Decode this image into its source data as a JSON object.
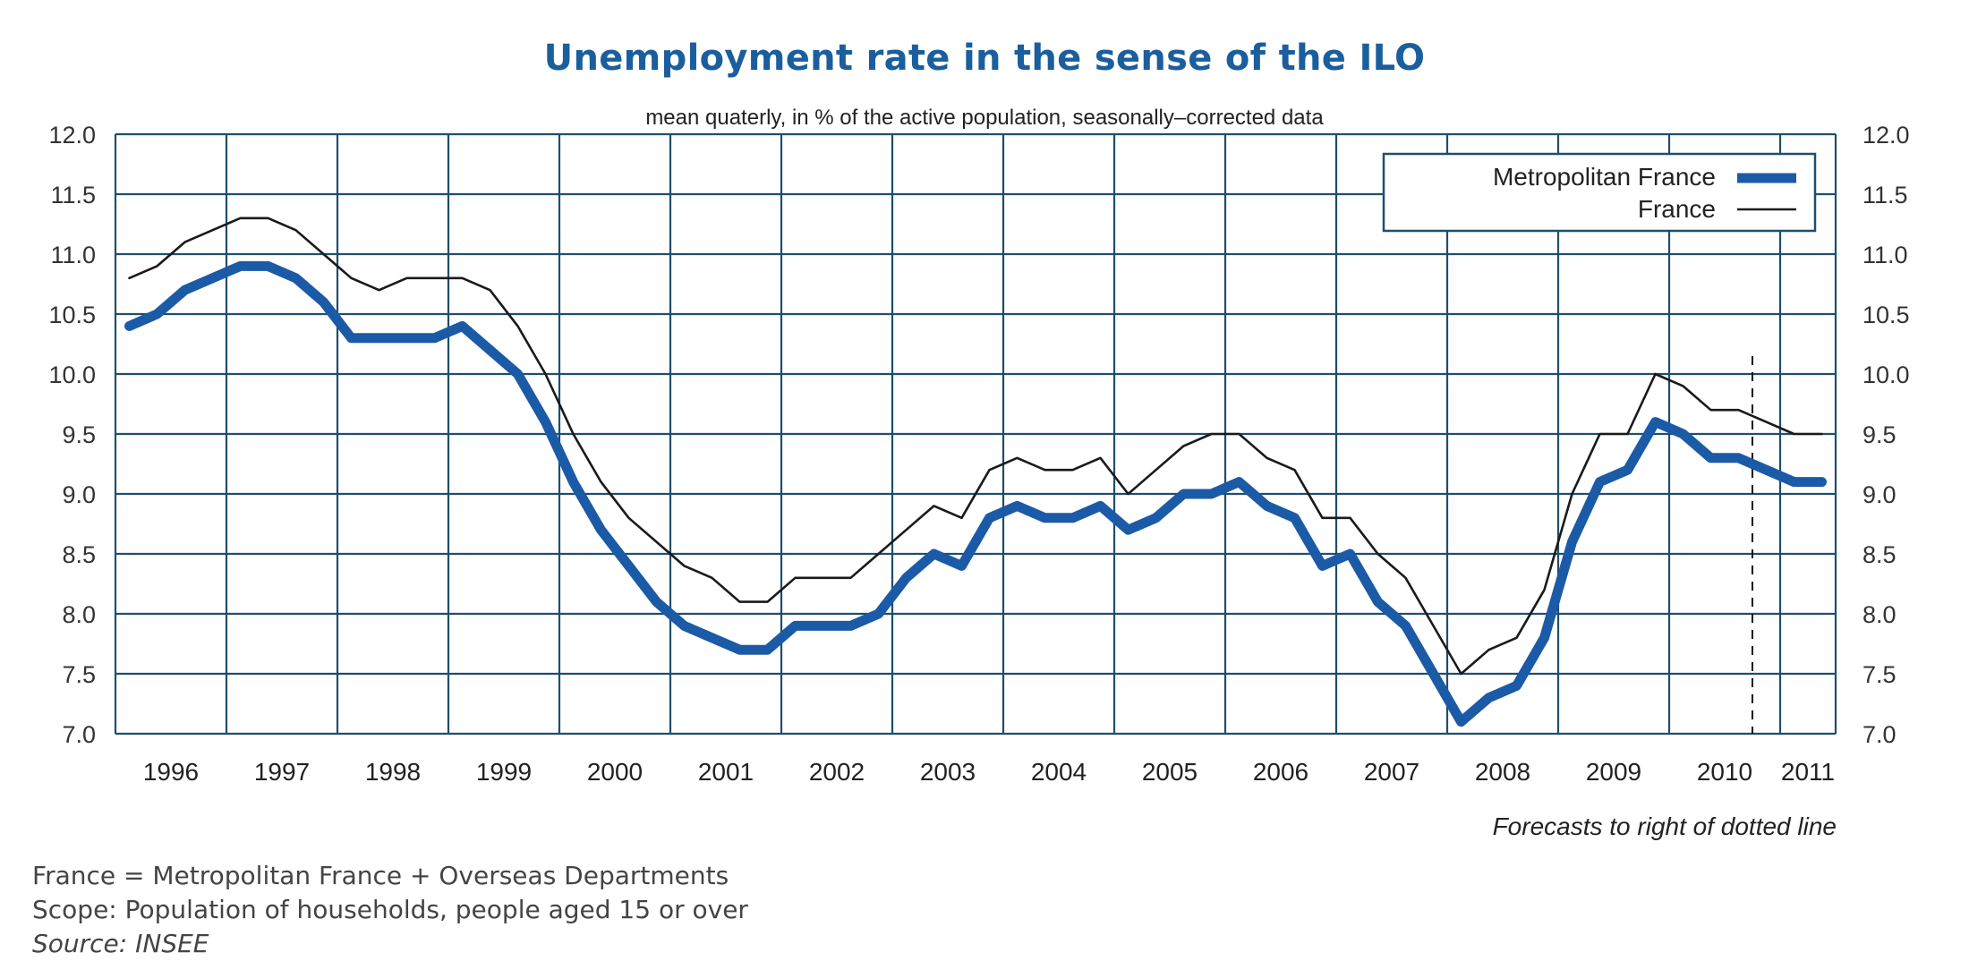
{
  "chart_data": {
    "type": "line",
    "title": "Unemployment rate in the sense of the ILO",
    "subtitle": "mean quaterly, in % of the active population, seasonally–corrected data",
    "xlabel": "",
    "ylabel": "",
    "ylim": [
      7.0,
      12.0
    ],
    "yticks": [
      "12.0",
      "11.5",
      "11.0",
      "10.5",
      "10.0",
      "9.5",
      "9.0",
      "8.5",
      "8.0",
      "7.5",
      "7.0"
    ],
    "ytick_values": [
      12.0,
      11.5,
      11.0,
      10.5,
      10.0,
      9.5,
      9.0,
      8.5,
      8.0,
      7.5,
      7.0
    ],
    "x_start": 1996,
    "x_end_years": 15.5,
    "periodicity": "quarterly",
    "xticks": [
      "1996",
      "1997",
      "1998",
      "1999",
      "2000",
      "2001",
      "2002",
      "2003",
      "2004",
      "2005",
      "2006",
      "2007",
      "2008",
      "2009",
      "2010",
      "2011"
    ],
    "grid": true,
    "legend_position": "top-right",
    "forecast_line_at": 2010.75,
    "forecast_note": "Forecasts to right of dotted line",
    "series": [
      {
        "name": "Metropolitan France",
        "color": "#1b5aa6",
        "style": "thick",
        "values": [
          10.4,
          10.5,
          10.7,
          10.8,
          10.9,
          10.9,
          10.8,
          10.6,
          10.3,
          10.3,
          10.3,
          10.3,
          10.4,
          10.2,
          10.0,
          9.6,
          9.1,
          8.7,
          8.4,
          8.1,
          7.9,
          7.8,
          7.7,
          7.7,
          7.9,
          7.9,
          7.9,
          8.0,
          8.3,
          8.5,
          8.4,
          8.8,
          8.9,
          8.8,
          8.8,
          8.9,
          8.7,
          8.8,
          9.0,
          9.0,
          9.1,
          8.9,
          8.8,
          8.4,
          8.5,
          8.1,
          7.9,
          7.5,
          7.1,
          7.3,
          7.4,
          7.8,
          8.6,
          9.1,
          9.2,
          9.6,
          9.5,
          9.3,
          9.3,
          9.2,
          9.1,
          9.1
        ]
      },
      {
        "name": "France",
        "color": "#1a1a1a",
        "style": "thin",
        "values": [
          10.8,
          10.9,
          11.1,
          11.2,
          11.3,
          11.3,
          11.2,
          11.0,
          10.8,
          10.7,
          10.8,
          10.8,
          10.8,
          10.7,
          10.4,
          10.0,
          9.5,
          9.1,
          8.8,
          8.6,
          8.4,
          8.3,
          8.1,
          8.1,
          8.3,
          8.3,
          8.3,
          8.5,
          8.7,
          8.9,
          8.8,
          9.2,
          9.3,
          9.2,
          9.2,
          9.3,
          9.0,
          9.2,
          9.4,
          9.5,
          9.5,
          9.3,
          9.2,
          8.8,
          8.8,
          8.5,
          8.3,
          7.9,
          7.5,
          7.7,
          7.8,
          8.2,
          9.0,
          9.5,
          9.5,
          10.0,
          9.9,
          9.7,
          9.7,
          9.6,
          9.5,
          9.5
        ]
      }
    ]
  },
  "colors": {
    "title": "#1b5e9e",
    "grid": "#1f4e6b",
    "plot_background": "#ffffff"
  },
  "footer": {
    "line1": "France = Metropolitan France + Overseas Departments",
    "line2": "Scope: Population of households, people aged 15 or over",
    "line3": "Source: INSEE"
  }
}
